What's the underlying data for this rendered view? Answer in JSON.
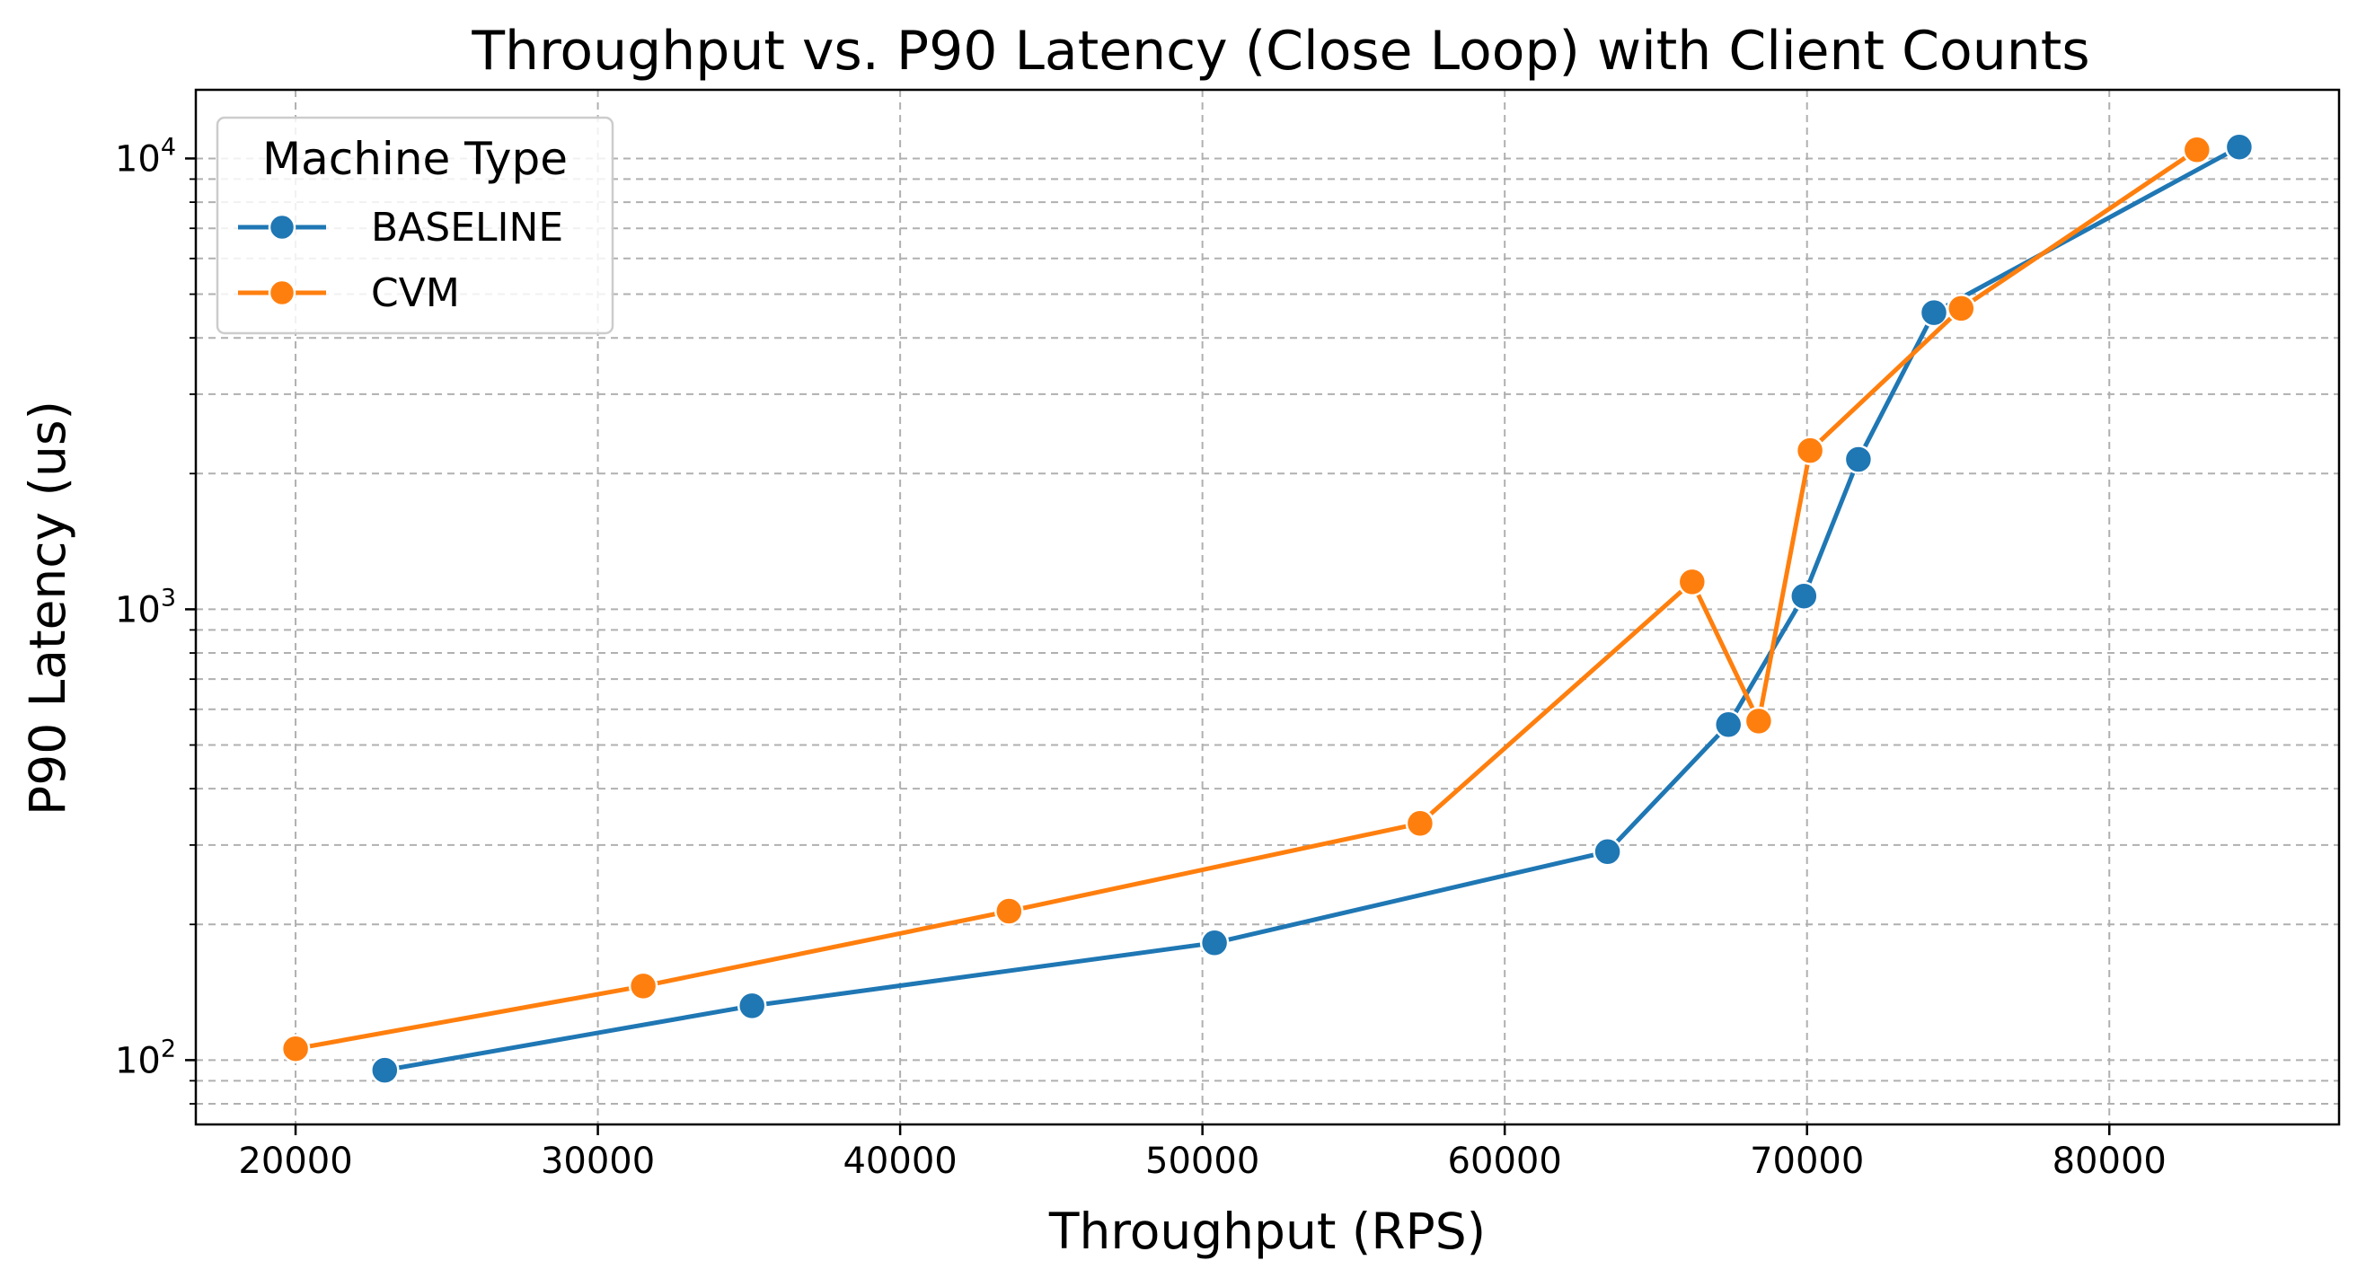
{
  "chart_data": {
    "type": "line",
    "title": "Throughput vs. P90 Latency (Close Loop) with Client Counts",
    "xlabel": "Throughput (RPS)",
    "ylabel": "P90 Latency (us)",
    "xlim": [
      16700,
      87600
    ],
    "ylim": [
      72,
      14200
    ],
    "yscale": "log",
    "xticks": [
      20000,
      30000,
      40000,
      50000,
      60000,
      70000,
      80000
    ],
    "xtick_labels": [
      "20000",
      "30000",
      "40000",
      "50000",
      "60000",
      "70000",
      "80000"
    ],
    "yticks": [
      100,
      1000,
      10000
    ],
    "ytick_labels": [
      {
        "base": "10",
        "exp": "2"
      },
      {
        "base": "10",
        "exp": "3"
      },
      {
        "base": "10",
        "exp": "4"
      }
    ],
    "grid": true,
    "legend": {
      "title": "Machine Type",
      "placement": "upper-left"
    },
    "series": [
      {
        "name": "BASELINE",
        "color": "#1f77b4",
        "marker": "circle",
        "x": [
          22950,
          35100,
          50400,
          63400,
          67400,
          69900,
          71700,
          74200,
          84300
        ],
        "y": [
          95,
          132,
          182,
          290,
          555,
          1070,
          2150,
          4550,
          10600
        ]
      },
      {
        "name": "CVM",
        "color": "#ff7f0e",
        "marker": "circle",
        "x": [
          20000,
          31500,
          43600,
          57200,
          66200,
          68400,
          70100,
          75100,
          82900
        ],
        "y": [
          106,
          146,
          214,
          335,
          1150,
          565,
          2250,
          4650,
          10450
        ]
      }
    ]
  }
}
